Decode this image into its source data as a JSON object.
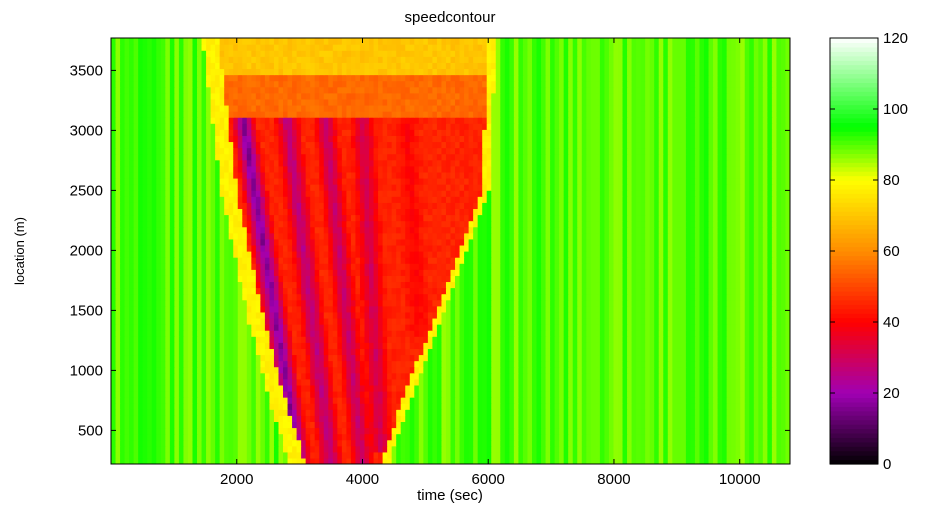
{
  "chart_data": {
    "type": "heatmap",
    "title": "speedcontour",
    "xlabel": "time (sec)",
    "ylabel": "location (m)",
    "xlim": [
      0,
      10800
    ],
    "ylim": [
      220,
      3770
    ],
    "xticks": [
      2000,
      4000,
      6000,
      8000,
      10000
    ],
    "yticks": [
      500,
      1000,
      1500,
      2000,
      2500,
      3000,
      3500
    ],
    "colorbar": {
      "range": [
        0,
        120
      ],
      "ticks": [
        0,
        20,
        40,
        60,
        80,
        100,
        120
      ],
      "colormap": [
        {
          "v": 0,
          "color": "#000000"
        },
        {
          "v": 20,
          "color": "#a000b4"
        },
        {
          "v": 40,
          "color": "#ff0000"
        },
        {
          "v": 60,
          "color": "#ff8c00"
        },
        {
          "v": 80,
          "color": "#ffff00"
        },
        {
          "v": 95,
          "color": "#00ff00"
        },
        {
          "v": 120,
          "color": "#ffffff"
        }
      ]
    },
    "free_flow_speed": 90,
    "congestion_region": {
      "upstream_boundary": [
        [
          1700,
          3770
        ],
        [
          2000,
          2500
        ],
        [
          2400,
          1500
        ],
        [
          2800,
          700
        ],
        [
          3100,
          220
        ]
      ],
      "downstream_boundary": [
        [
          6000,
          3770
        ],
        [
          5900,
          2500
        ],
        [
          5400,
          1800
        ],
        [
          4600,
          700
        ],
        [
          4300,
          220
        ]
      ],
      "waves": [
        {
          "x0": 2100,
          "y0": 3100,
          "x1": 3000,
          "y1": 220,
          "min_speed": 15
        },
        {
          "x0": 2800,
          "y0": 3100,
          "x1": 3500,
          "y1": 220,
          "min_speed": 25
        },
        {
          "x0": 3400,
          "y0": 3100,
          "x1": 4000,
          "y1": 220,
          "min_speed": 28
        },
        {
          "x0": 4000,
          "y0": 3100,
          "x1": 4300,
          "y1": 300,
          "min_speed": 30
        },
        {
          "x0": 4700,
          "y0": 3100,
          "x1": 4900,
          "y1": 1300,
          "min_speed": 40
        },
        {
          "x0": 5300,
          "y0": 3100,
          "x1": 5500,
          "y1": 1900,
          "min_speed": 45
        }
      ]
    }
  }
}
